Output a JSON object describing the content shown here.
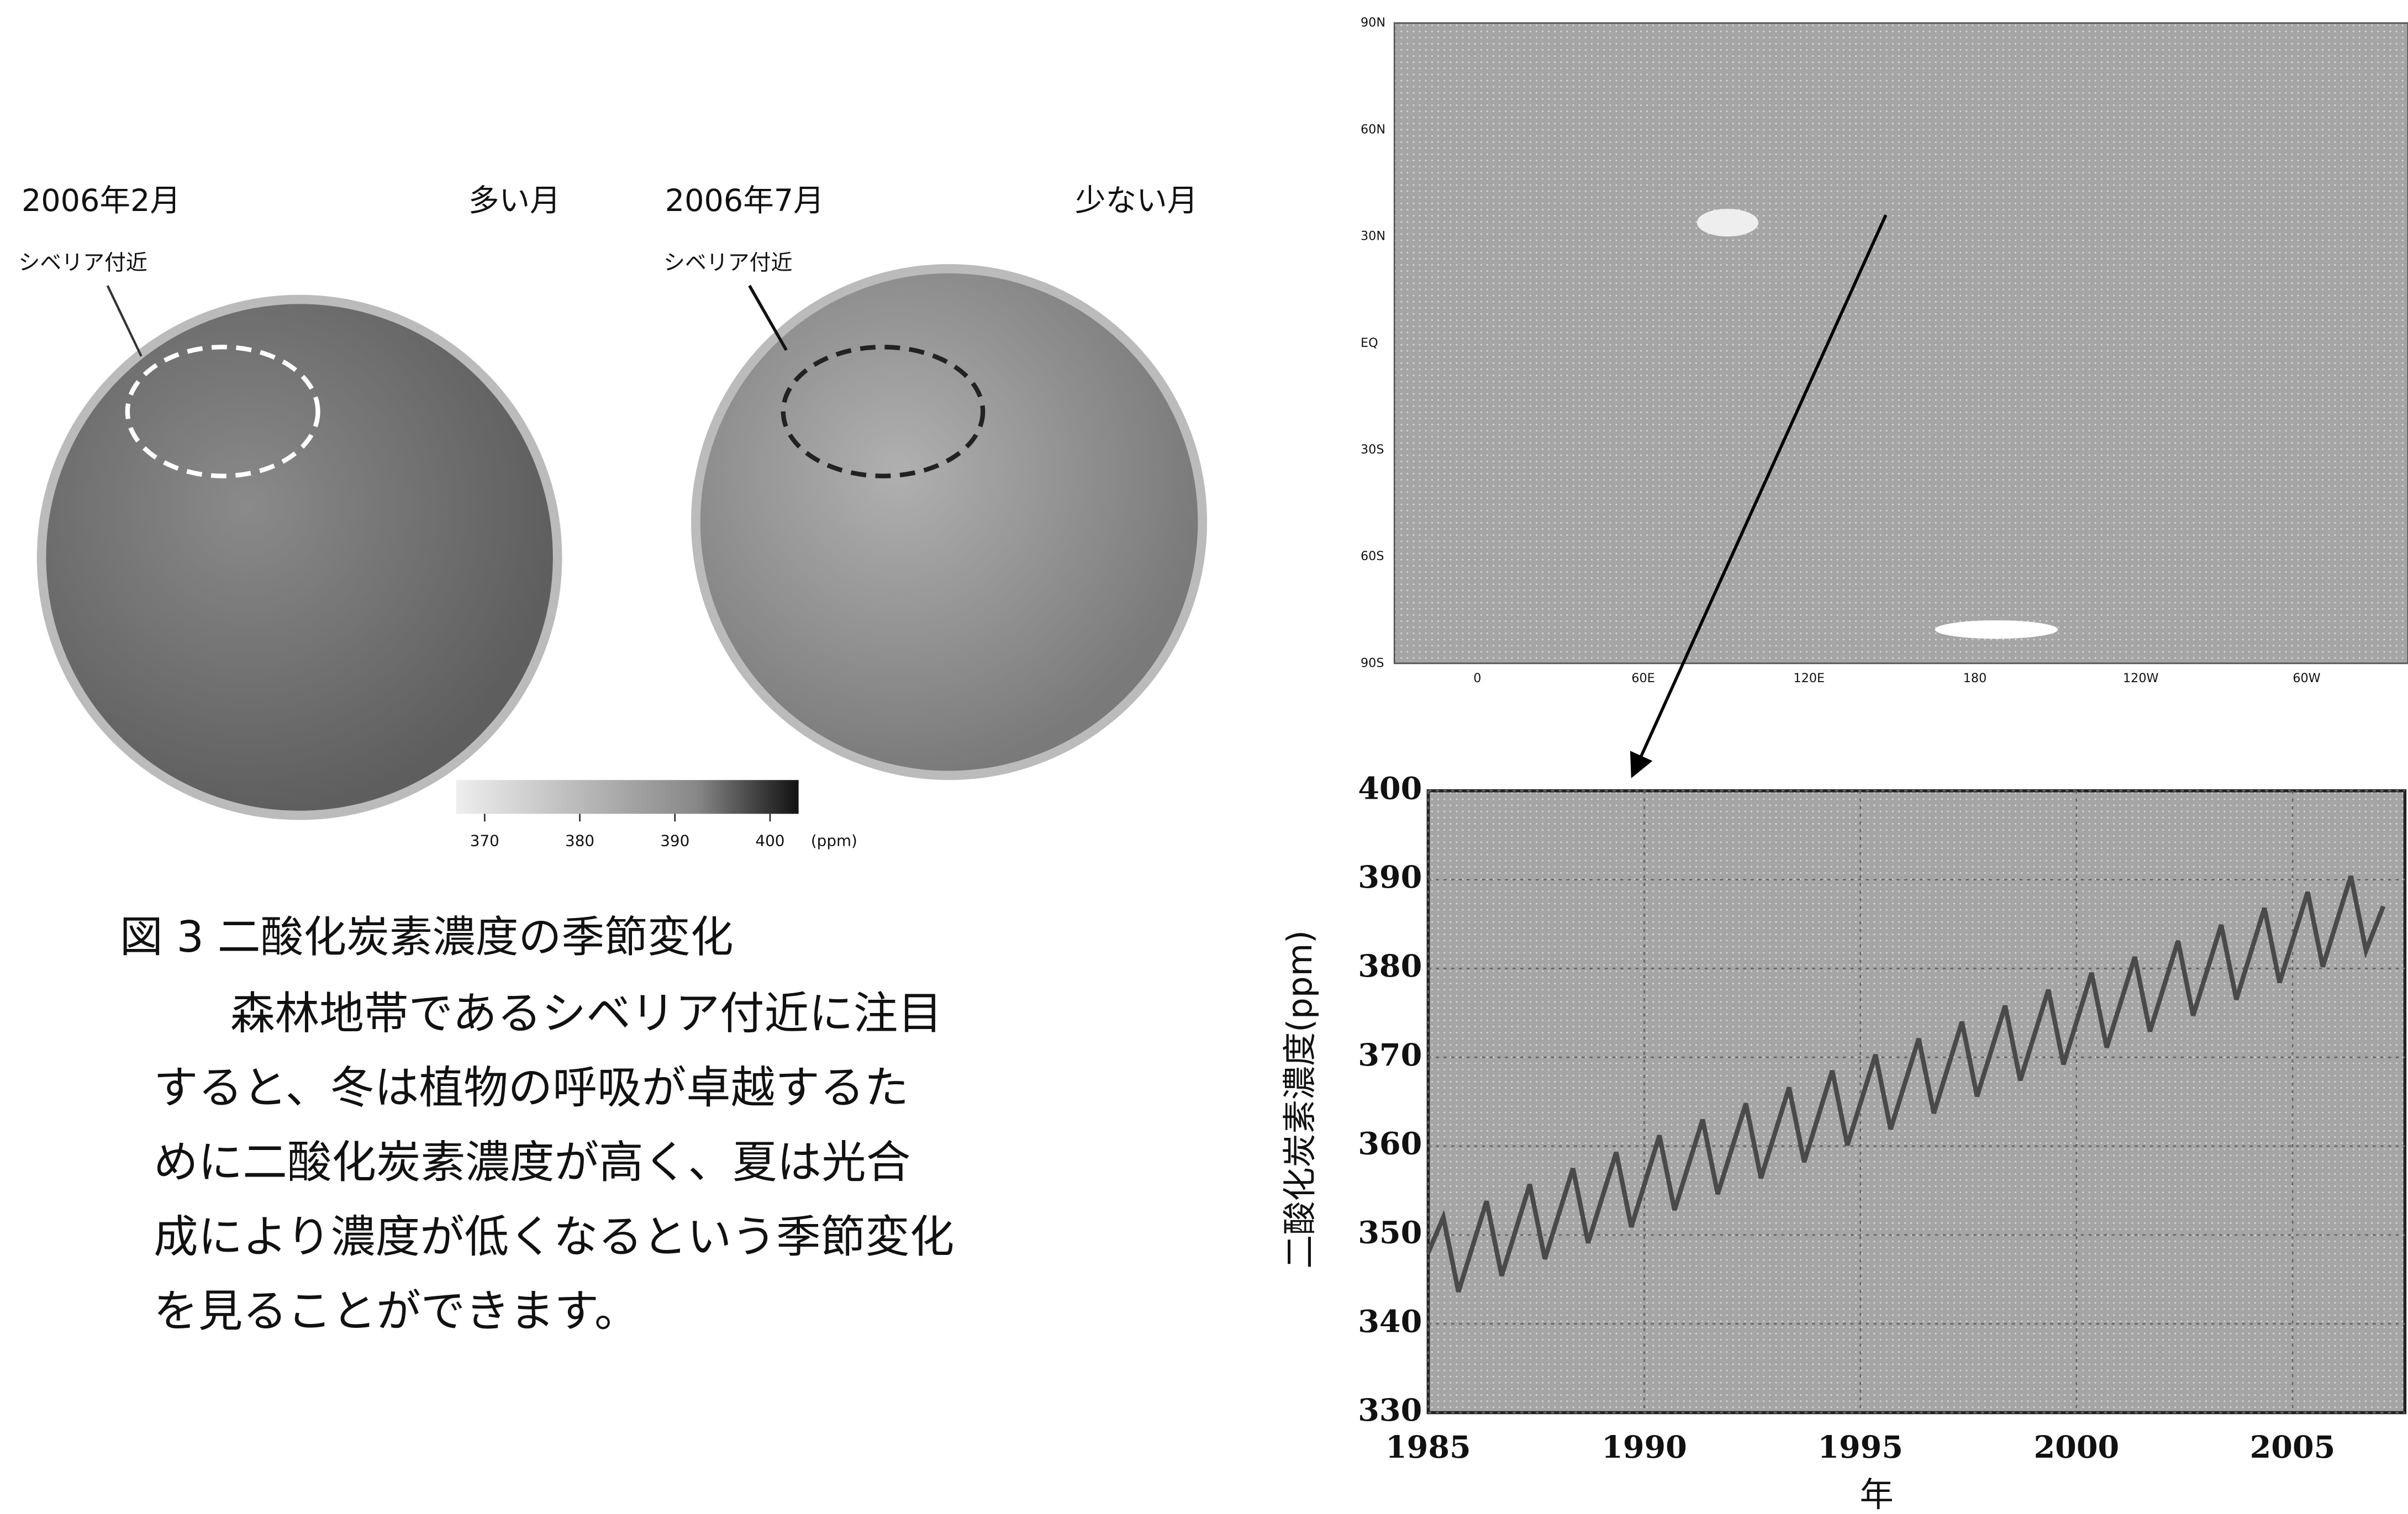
{
  "figure": {
    "left_month": "2006年2月",
    "left_note": "多い月",
    "right_month": "2006年7月",
    "right_note": "少ない月",
    "left_region": "シベリア付近",
    "right_region": "シベリア付近",
    "colorbar": {
      "lim": [
        367,
        403
      ],
      "ticks": [
        370,
        380,
        390,
        400
      ],
      "unit": "(ppm)"
    },
    "caption": {
      "title": "図 3  二酸化炭素濃度の季節変化",
      "lines": [
        "森林地帯であるシベリア付近に注目",
        "すると、冬は植物の呼吸が卓越するた",
        "めに二酸化炭素濃度が高く、夏は光合",
        "成により濃度が低くなるという季節変化",
        "を見ることができます。"
      ]
    },
    "map": {
      "lat_labels": [
        "90N",
        "60N",
        "30N",
        "EQ",
        "30S",
        "60S",
        "90S"
      ],
      "lon_labels": [
        "0",
        "60E",
        "120E",
        "180",
        "120W",
        "60W"
      ]
    }
  },
  "chart_data": {
    "type": "line",
    "ylabel": "二酸化炭素濃度(ppm)",
    "xlabel": "年",
    "color": "#4a4a4a",
    "grid": true,
    "xlim": [
      1985,
      2007.6
    ],
    "ylim": [
      330,
      400
    ],
    "xticks": [
      1985,
      1990,
      1995,
      2000,
      2005
    ],
    "yticks": [
      330,
      340,
      350,
      360,
      370,
      380,
      390,
      400
    ],
    "x": [
      1985,
      1985.35,
      1985.7,
      1986.35,
      1986.7,
      1987.35,
      1987.7,
      1988.35,
      1988.7,
      1989.35,
      1989.7,
      1990.35,
      1990.7,
      1991.35,
      1991.7,
      1992.35,
      1992.7,
      1993.35,
      1993.7,
      1994.35,
      1994.7,
      1995.35,
      1995.7,
      1996.35,
      1996.7,
      1997.35,
      1997.7,
      1998.35,
      1998.7,
      1999.35,
      1999.7,
      2000.35,
      2000.7,
      2001.35,
      2001.7,
      2002.35,
      2002.7,
      2003.35,
      2003.7,
      2004.35,
      2004.7,
      2005.35,
      2005.7,
      2006.35,
      2006.7,
      2007.1
    ],
    "values": [
      348.0,
      352.0,
      343.6,
      353.8,
      345.4,
      355.7,
      347.3,
      357.5,
      349.1,
      359.3,
      350.9,
      361.2,
      352.8,
      363.0,
      354.6,
      364.8,
      356.4,
      366.6,
      358.2,
      368.5,
      360.1,
      370.3,
      361.9,
      372.1,
      363.7,
      374.0,
      365.6,
      375.8,
      367.4,
      377.6,
      369.2,
      379.5,
      371.1,
      381.3,
      372.9,
      383.1,
      374.7,
      384.9,
      376.5,
      386.8,
      378.4,
      388.6,
      380.2,
      390.4,
      382.0,
      387.0
    ]
  }
}
